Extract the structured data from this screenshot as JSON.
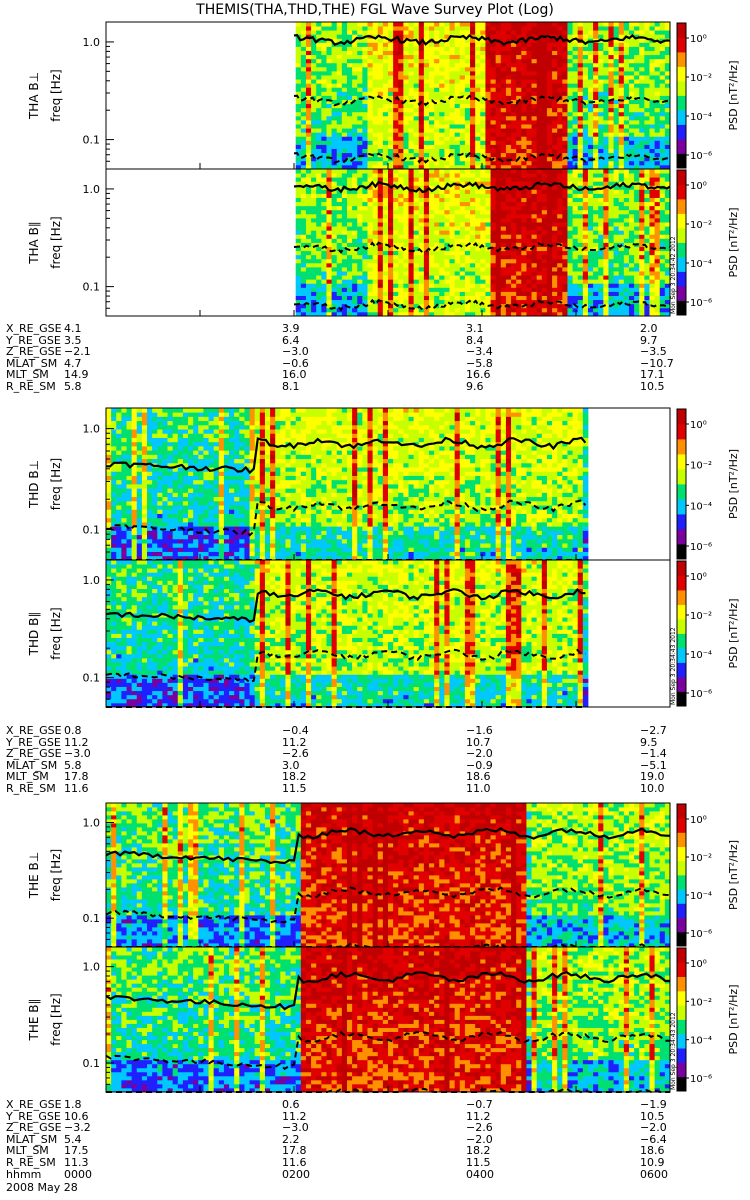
{
  "title": "THEMIS(THA,THD,THE) FGL Wave Survey Plot (Log)",
  "colors": {
    "background": "#ffffff",
    "axis": "#000000",
    "trace": "#000000"
  },
  "chart_data": {
    "type": "heatmap",
    "title": "THEMIS(THA,THD,THE) FGL Wave Survey Plot (Log)",
    "x_range_hours": [
      0,
      6
    ],
    "x_tick_labels": [
      "0000",
      "0200",
      "0400",
      "0600"
    ],
    "colorbar": {
      "label": "PSD [nT²/Hz]",
      "scale": "log",
      "ticks": [
        "10⁰",
        "10⁻²",
        "10⁻⁴",
        "10⁻⁶"
      ],
      "colors": [
        "#000000",
        "#7a00a0",
        "#2020ff",
        "#00c8ff",
        "#00e070",
        "#c8ff00",
        "#ffff00",
        "#ff9000",
        "#e00000",
        "#c00000"
      ]
    },
    "panels": [
      {
        "id": "tha_bperp",
        "label": "THA B⊥",
        "ylabel": "freq [Hz]",
        "yscale": "log",
        "ylim": [
          0.05,
          1.6
        ],
        "y_tick_labels": [
          "1.0",
          "0.1"
        ],
        "data_range_hours": [
          2.0,
          6.0
        ],
        "stamp": "Mon Sep 3 20:34:42 2012"
      },
      {
        "id": "tha_bpar",
        "label": "THA B∥",
        "ylabel": "freq [Hz]",
        "yscale": "log",
        "ylim": [
          0.05,
          1.6
        ],
        "y_tick_labels": [
          "1.0",
          "0.1"
        ],
        "data_range_hours": [
          2.0,
          6.0
        ],
        "stamp": "Mon Sep 3 20:34:42 2012"
      },
      {
        "id": "thd_bperp",
        "label": "THD B⊥",
        "ylabel": "freq [Hz]",
        "yscale": "log",
        "ylim": [
          0.05,
          1.6
        ],
        "y_tick_labels": [
          "1.0",
          "0.1"
        ],
        "data_range_hours": [
          0.0,
          5.1
        ],
        "stamp": "Mon Sep 3 20:34:43 2012"
      },
      {
        "id": "thd_bpar",
        "label": "THD B∥",
        "ylabel": "freq [Hz]",
        "yscale": "log",
        "ylim": [
          0.05,
          1.6
        ],
        "y_tick_labels": [
          "1.0",
          "0.1"
        ],
        "data_range_hours": [
          0.0,
          5.1
        ],
        "stamp": "Mon Sep 3 20:34:43 2012"
      },
      {
        "id": "the_bperp",
        "label": "THE B⊥",
        "ylabel": "freq [Hz]",
        "yscale": "log",
        "ylim": [
          0.05,
          1.6
        ],
        "y_tick_labels": [
          "1.0",
          "0.1"
        ],
        "data_range_hours": [
          0.0,
          6.0
        ],
        "stamp": "Mon Sep 3 20:34:43 2012"
      },
      {
        "id": "the_bpar",
        "label": "THE B∥",
        "ylabel": "freq [Hz]",
        "yscale": "log",
        "ylim": [
          0.05,
          1.6
        ],
        "y_tick_labels": [
          "1.0",
          "0.1"
        ],
        "data_range_hours": [
          0.0,
          6.0
        ],
        "stamp": "Mon Sep 3 20:34:43 2012"
      }
    ],
    "ephemeris": [
      {
        "spacecraft": "THA",
        "rows": [
          {
            "name": "X_RE_GSE",
            "values": [
              "4.1",
              "3.9",
              "3.1",
              "2.0"
            ]
          },
          {
            "name": "Y_RE_GSE",
            "values": [
              "3.5",
              "6.4",
              "8.4",
              "9.7"
            ]
          },
          {
            "name": "Z_RE_GSE",
            "values": [
              "-2.1",
              "-3.0",
              "-3.4",
              "-3.5"
            ]
          },
          {
            "name": "MLAT_SM",
            "values": [
              "4.7",
              "-0.6",
              "-5.8",
              "-10.7"
            ]
          },
          {
            "name": "MLT_SM",
            "values": [
              "14.9",
              "16.0",
              "16.6",
              "17.1"
            ]
          },
          {
            "name": "R_RE_SM",
            "values": [
              "5.8",
              "8.1",
              "9.6",
              "10.5"
            ]
          }
        ]
      },
      {
        "spacecraft": "THD",
        "rows": [
          {
            "name": "X_RE_GSE",
            "values": [
              "0.8",
              "-0.4",
              "-1.6",
              "-2.7"
            ]
          },
          {
            "name": "Y_RE_GSE",
            "values": [
              "11.2",
              "11.2",
              "10.7",
              "9.5"
            ]
          },
          {
            "name": "Z_RE_GSE",
            "values": [
              "-3.0",
              "-2.6",
              "-2.0",
              "-1.4"
            ]
          },
          {
            "name": "MLAT_SM",
            "values": [
              "5.8",
              "3.0",
              "-0.9",
              "-5.1"
            ]
          },
          {
            "name": "MLT_SM",
            "values": [
              "17.8",
              "18.2",
              "18.6",
              "19.0"
            ]
          },
          {
            "name": "R_RE_SM",
            "values": [
              "11.6",
              "11.5",
              "11.0",
              "10.0"
            ]
          }
        ]
      },
      {
        "spacecraft": "THE",
        "rows": [
          {
            "name": "X_RE_GSE",
            "values": [
              "1.8",
              "0.6",
              "-0.7",
              "-1.9"
            ]
          },
          {
            "name": "Y_RE_GSE",
            "values": [
              "10.6",
              "11.2",
              "11.2",
              "10.5"
            ]
          },
          {
            "name": "Z_RE_GSE",
            "values": [
              "-3.2",
              "-3.0",
              "-2.6",
              "-2.0"
            ]
          },
          {
            "name": "MLAT_SM",
            "values": [
              "5.4",
              "2.2",
              "-2.0",
              "-6.4"
            ]
          },
          {
            "name": "MLT_SM",
            "values": [
              "17.5",
              "17.8",
              "18.2",
              "18.6"
            ]
          },
          {
            "name": "R_RE_SM",
            "values": [
              "11.3",
              "11.6",
              "11.5",
              "10.9"
            ]
          },
          {
            "name": "hhmm",
            "values": [
              "0000",
              "0200",
              "0400",
              "0600"
            ]
          }
        ]
      }
    ],
    "date": "2008 May 28"
  }
}
